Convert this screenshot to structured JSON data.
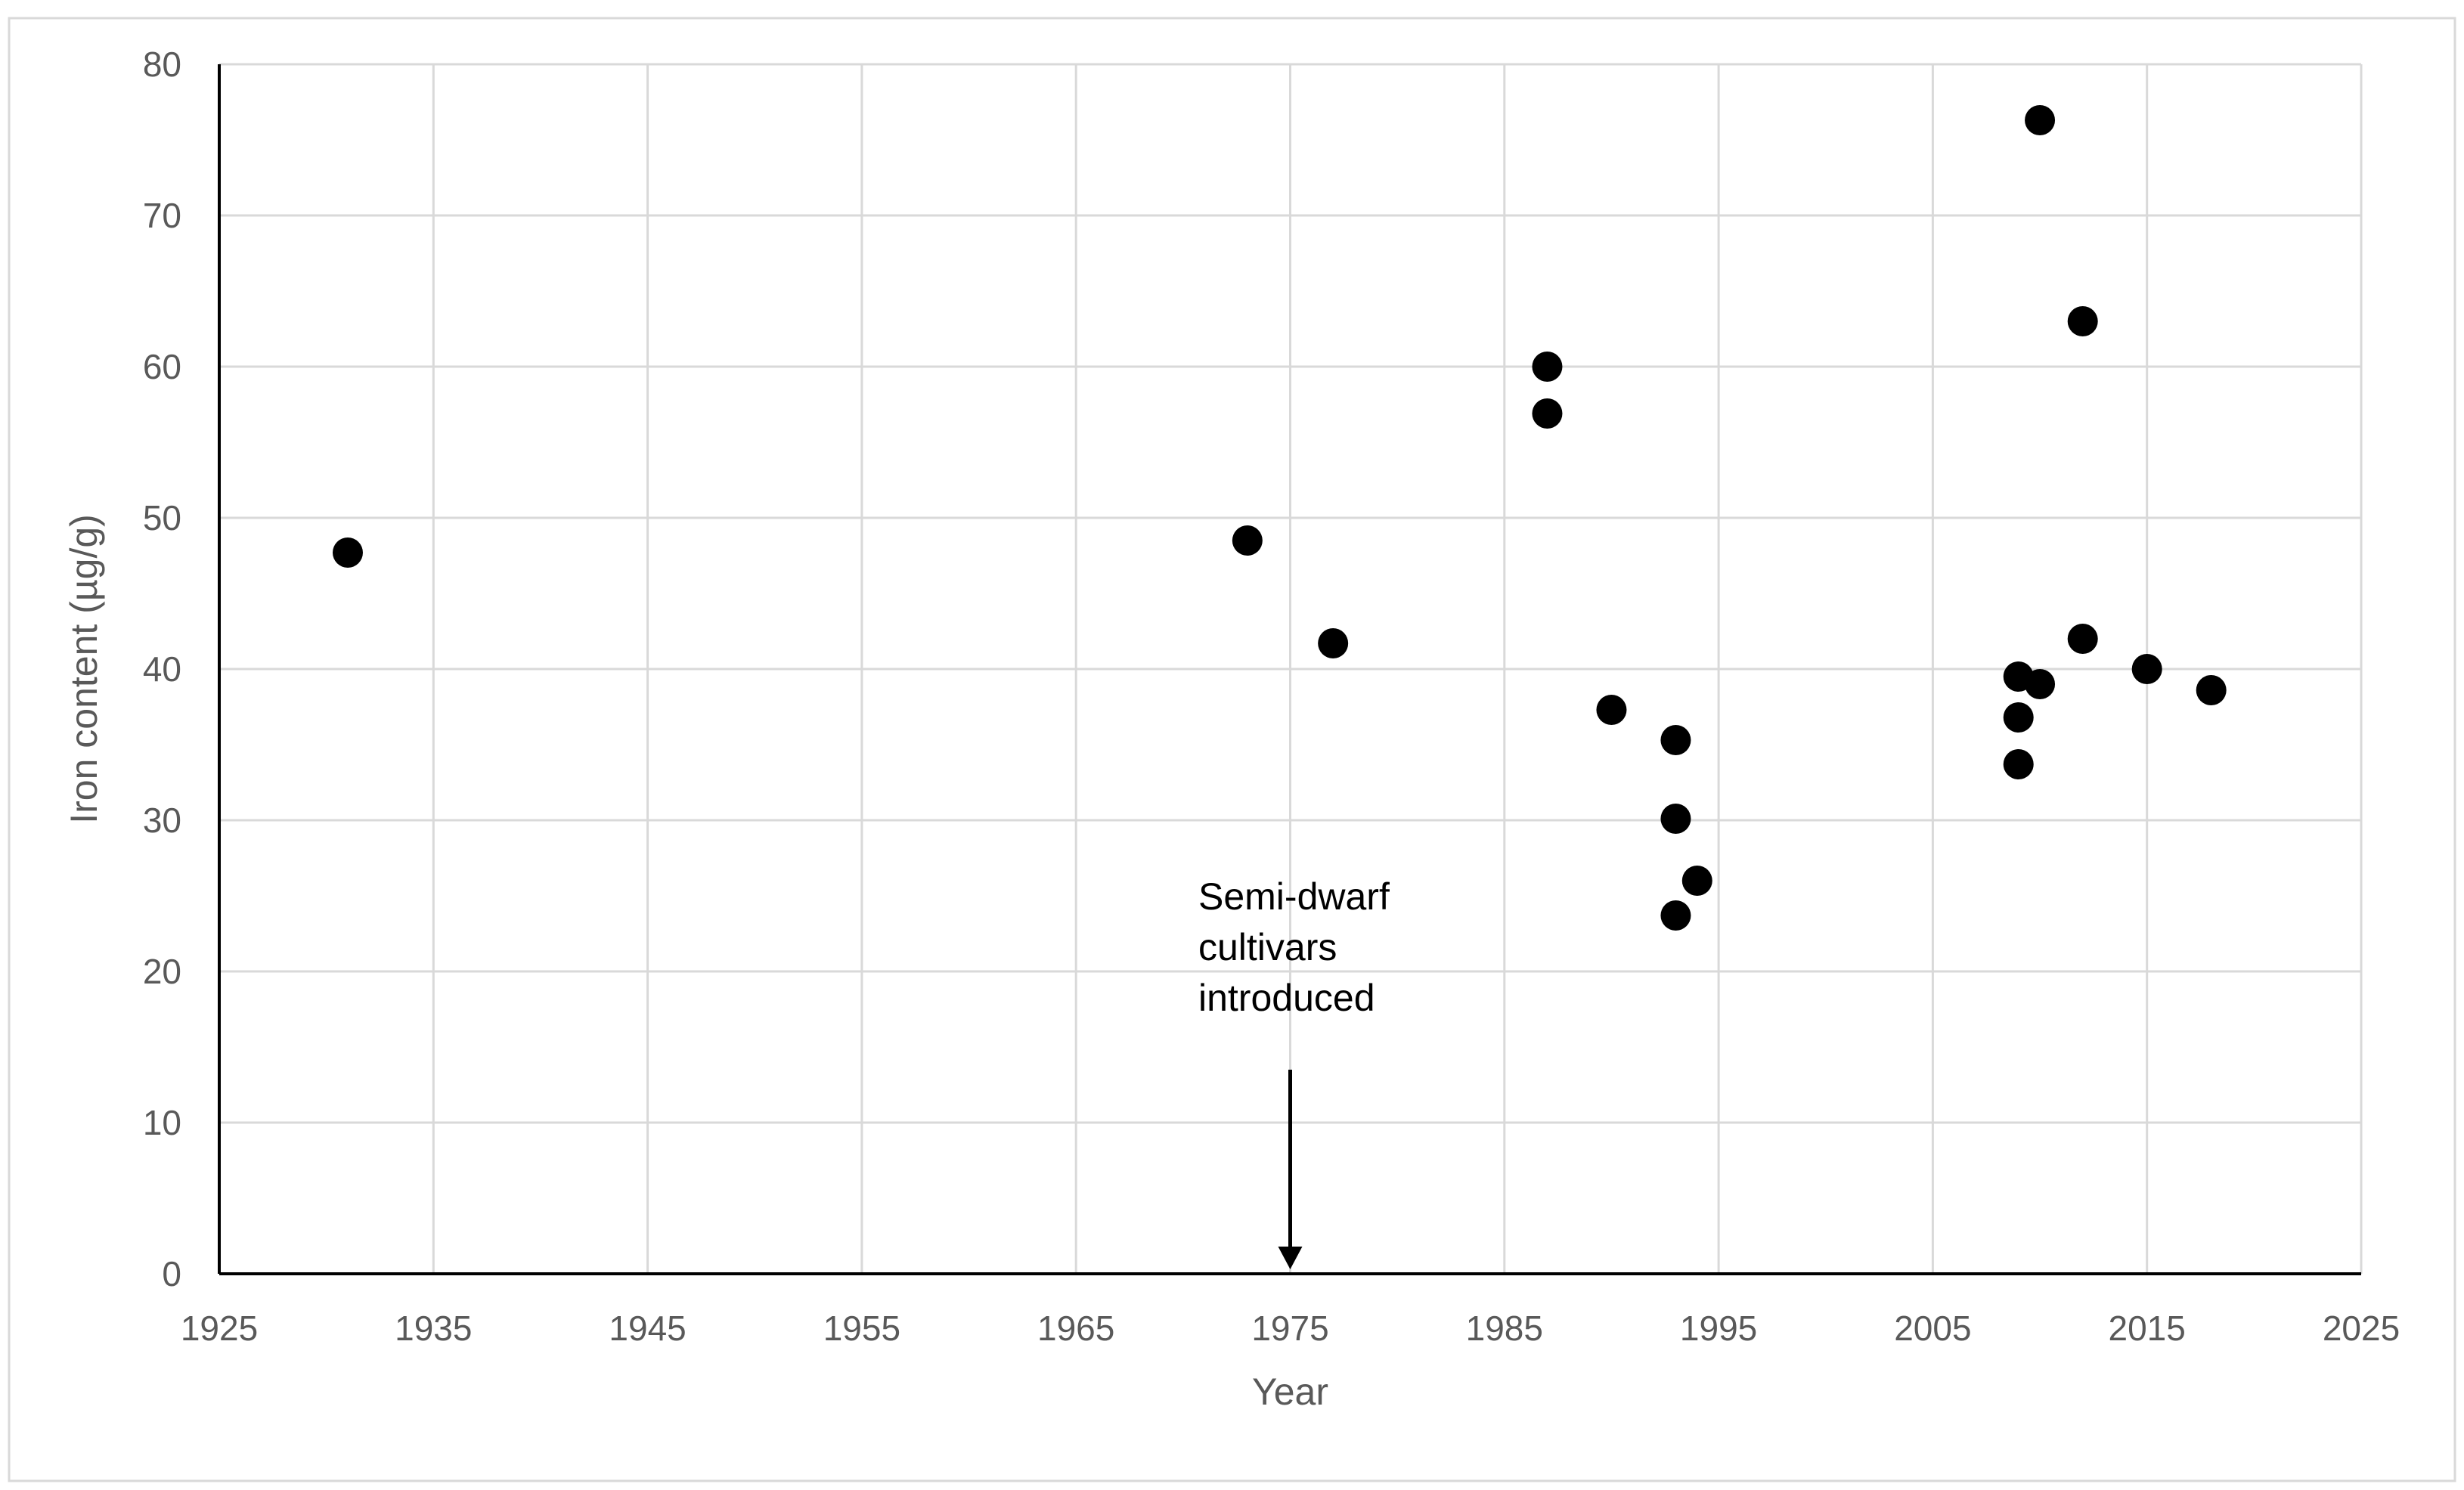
{
  "chart_data": {
    "type": "scatter",
    "title": "",
    "xlabel": "Year",
    "ylabel": "Iron content (µg/g)",
    "xlim": [
      1925,
      2025
    ],
    "ylim": [
      0,
      80
    ],
    "xticks": [
      1925,
      1935,
      1945,
      1955,
      1965,
      1975,
      1985,
      1995,
      2005,
      2015,
      2025
    ],
    "yticks": [
      0,
      10,
      20,
      30,
      40,
      50,
      60,
      70,
      80
    ],
    "grid": true,
    "legend": "none",
    "colors": {
      "marker": "#000000",
      "grid": "#d9d9d9",
      "axis": "#000000",
      "border": "#d9d9d9"
    },
    "series": [
      {
        "points": [
          {
            "x": 1931,
            "y": 47.7
          },
          {
            "x": 1973,
            "y": 48.5
          },
          {
            "x": 1977,
            "y": 41.7
          },
          {
            "x": 1987,
            "y": 60.0
          },
          {
            "x": 1987,
            "y": 56.9
          },
          {
            "x": 1990,
            "y": 37.3
          },
          {
            "x": 1993,
            "y": 35.3
          },
          {
            "x": 1993,
            "y": 30.1
          },
          {
            "x": 1993,
            "y": 23.7
          },
          {
            "x": 1994,
            "y": 26.0
          },
          {
            "x": 2009,
            "y": 39.5
          },
          {
            "x": 2009,
            "y": 36.8
          },
          {
            "x": 2009,
            "y": 33.7
          },
          {
            "x": 2010,
            "y": 76.3
          },
          {
            "x": 2010,
            "y": 39.0
          },
          {
            "x": 2012,
            "y": 63.0
          },
          {
            "x": 2012,
            "y": 42.0
          },
          {
            "x": 2015,
            "y": 40.0
          },
          {
            "x": 2018,
            "y": 38.6
          }
        ]
      }
    ],
    "annotation": {
      "lines": [
        "Semi-dwarf",
        "cultivars",
        "introduced"
      ],
      "arrow_x": 1975,
      "arrow_from_y": 13.5,
      "arrow_to_y": 0.3
    }
  }
}
